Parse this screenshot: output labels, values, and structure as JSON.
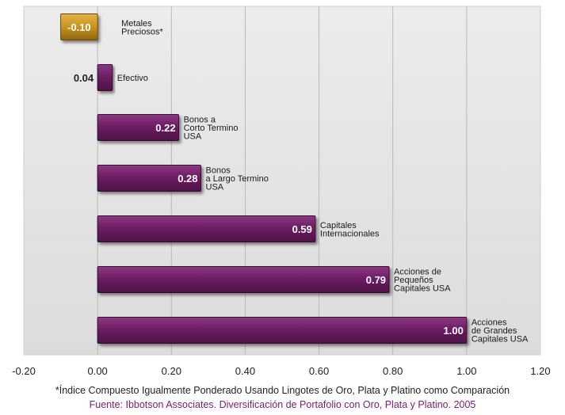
{
  "chart_data": {
    "type": "bar",
    "orientation": "horizontal",
    "xlim": [
      -0.2,
      1.2
    ],
    "xticks": [
      "-0.20",
      "0.00",
      "0.20",
      "0.40",
      "0.60",
      "0.80",
      "1.00",
      "1.20"
    ],
    "grid": true,
    "categories": [
      [
        "Metales",
        "Preciosos*"
      ],
      [
        "Efectivo"
      ],
      [
        "Bonos a",
        "Corto Termino",
        "USA"
      ],
      [
        "Bonos",
        "a Largo Termino",
        "USA"
      ],
      [
        "Capitales",
        "Internacionales"
      ],
      [
        "Acciones de",
        "Pequeños",
        "Capitales USA"
      ],
      [
        "Acciones",
        "de Grandes",
        "Capitales USA"
      ]
    ],
    "values": [
      -0.1,
      0.04,
      0.22,
      0.28,
      0.59,
      0.79,
      1.0
    ],
    "value_labels": [
      "-0.10",
      "0.04",
      "0.22",
      "0.28",
      "0.59",
      "0.79",
      "1.00"
    ],
    "colors": {
      "bar": "#6e1e64",
      "negative_bar": "#c8951e",
      "plot_background": "#e7e7e7",
      "footnote": "#222222",
      "source": "#7a1e6e"
    }
  },
  "footnote": "*Índice Compuesto Igualmente Ponderado Usando Lingotes de Oro, Plata y Platino como Comparación",
  "source": "Fuente: Ibbotson Associates. Diversificación de Portafolio con Oro, Plata y Platino. 2005"
}
